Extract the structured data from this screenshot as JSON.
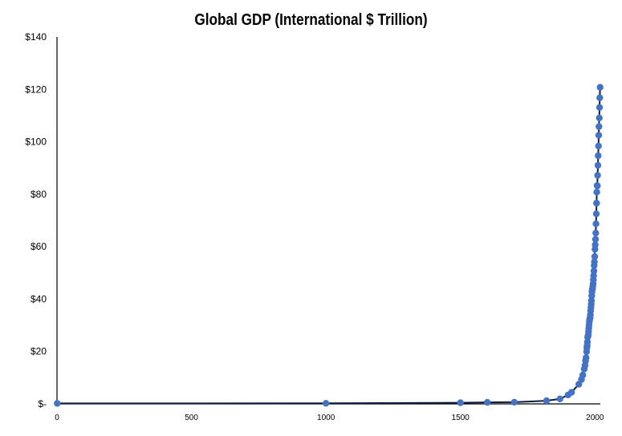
{
  "chart_data": {
    "type": "scatter",
    "title": "Global GDP (International $ Trillion)",
    "xlabel": "",
    "ylabel": "",
    "xlim": [
      0,
      2020
    ],
    "ylim": [
      0,
      140
    ],
    "x_ticks": [
      0,
      500,
      1000,
      1500,
      2000
    ],
    "x_tick_labels": [
      "0",
      "500",
      "1000",
      "1500",
      "2000"
    ],
    "y_ticks": [
      0,
      20,
      40,
      60,
      80,
      100,
      120,
      140
    ],
    "y_tick_labels": [
      "$-",
      "$20",
      "$40",
      "$60",
      "$80",
      "$100",
      "$120",
      "$140"
    ],
    "grid": false,
    "legend": "none",
    "marker_color": "#4472C4",
    "line_color": "#0D1B3E",
    "series": [
      {
        "x": [
          1,
          1000,
          1500,
          1600,
          1700,
          1820,
          1870,
          1900,
          1913,
          1940,
          1950,
          1955,
          1960,
          1963,
          1965,
          1967,
          1969,
          1970,
          1971,
          1972,
          1973,
          1974,
          1975,
          1976,
          1977,
          1978,
          1979,
          1980,
          1981,
          1982,
          1983,
          1984,
          1985,
          1986,
          1987,
          1988,
          1989,
          1990,
          1991,
          1992,
          1993,
          1994,
          1995,
          1996,
          1997,
          1998,
          1999,
          2000,
          2001,
          2002,
          2003,
          2004,
          2005,
          2006,
          2007,
          2008,
          2009,
          2010,
          2011,
          2012,
          2013,
          2014,
          2015,
          2016,
          2017,
          2018,
          2019
        ],
        "values": [
          0.18,
          0.21,
          0.43,
          0.58,
          0.64,
          1.2,
          1.9,
          3.4,
          4.4,
          7.5,
          9.3,
          11.0,
          13.3,
          14.7,
          16.4,
          17.6,
          19.9,
          21.4,
          22.3,
          23.6,
          25.4,
          25.8,
          26.3,
          27.6,
          28.8,
          30.1,
          31.3,
          32.0,
          32.6,
          33.0,
          34.0,
          35.5,
          36.8,
          38.0,
          39.4,
          41.2,
          42.7,
          43.6,
          44.0,
          44.9,
          45.8,
          47.3,
          48.9,
          50.7,
          52.8,
          54.2,
          56.2,
          59.0,
          60.7,
          62.8,
          65.2,
          68.7,
          72.5,
          76.6,
          80.8,
          83.3,
          83.2,
          87.2,
          91.0,
          94.7,
          98.4,
          102.5,
          105.8,
          109.1,
          113.1,
          116.8,
          120.8
        ]
      }
    ]
  }
}
